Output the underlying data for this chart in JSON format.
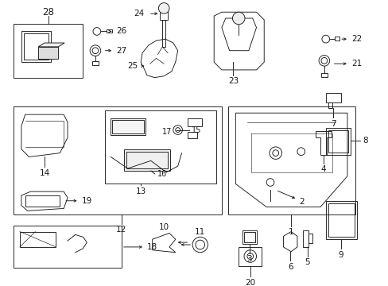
{
  "background_color": "#ffffff",
  "line_color": "#1a1a1a",
  "fig_width": 4.89,
  "fig_height": 3.6,
  "dpi": 100,
  "label_fontsize": 7.5,
  "lw": 0.65
}
